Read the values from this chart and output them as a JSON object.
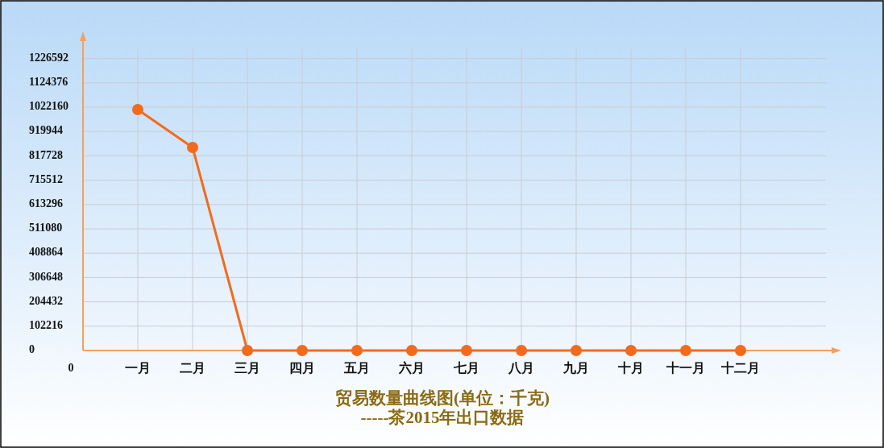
{
  "chart_data": {
    "type": "line",
    "title": "贸易数量曲线图(单位：千克)",
    "subtitle": "-----茶2015年出口数据",
    "categories": [
      "一月",
      "二月",
      "三月",
      "四月",
      "五月",
      "六月",
      "七月",
      "八月",
      "九月",
      "十月",
      "十一月",
      "十二月"
    ],
    "series": [
      {
        "color": "#f26b1d",
        "values": [
          1012000,
          853000,
          0,
          0,
          0,
          0,
          0,
          0,
          0,
          0,
          0,
          0
        ]
      }
    ],
    "ylim": [
      0,
      1320000
    ],
    "yticks": [
      0,
      102216,
      204432,
      306648,
      408864,
      511080,
      613296,
      715512,
      817728,
      919944,
      1022160,
      1124376,
      1226592
    ],
    "grid": true,
    "marker": "circle",
    "annotations": [
      "0"
    ]
  }
}
